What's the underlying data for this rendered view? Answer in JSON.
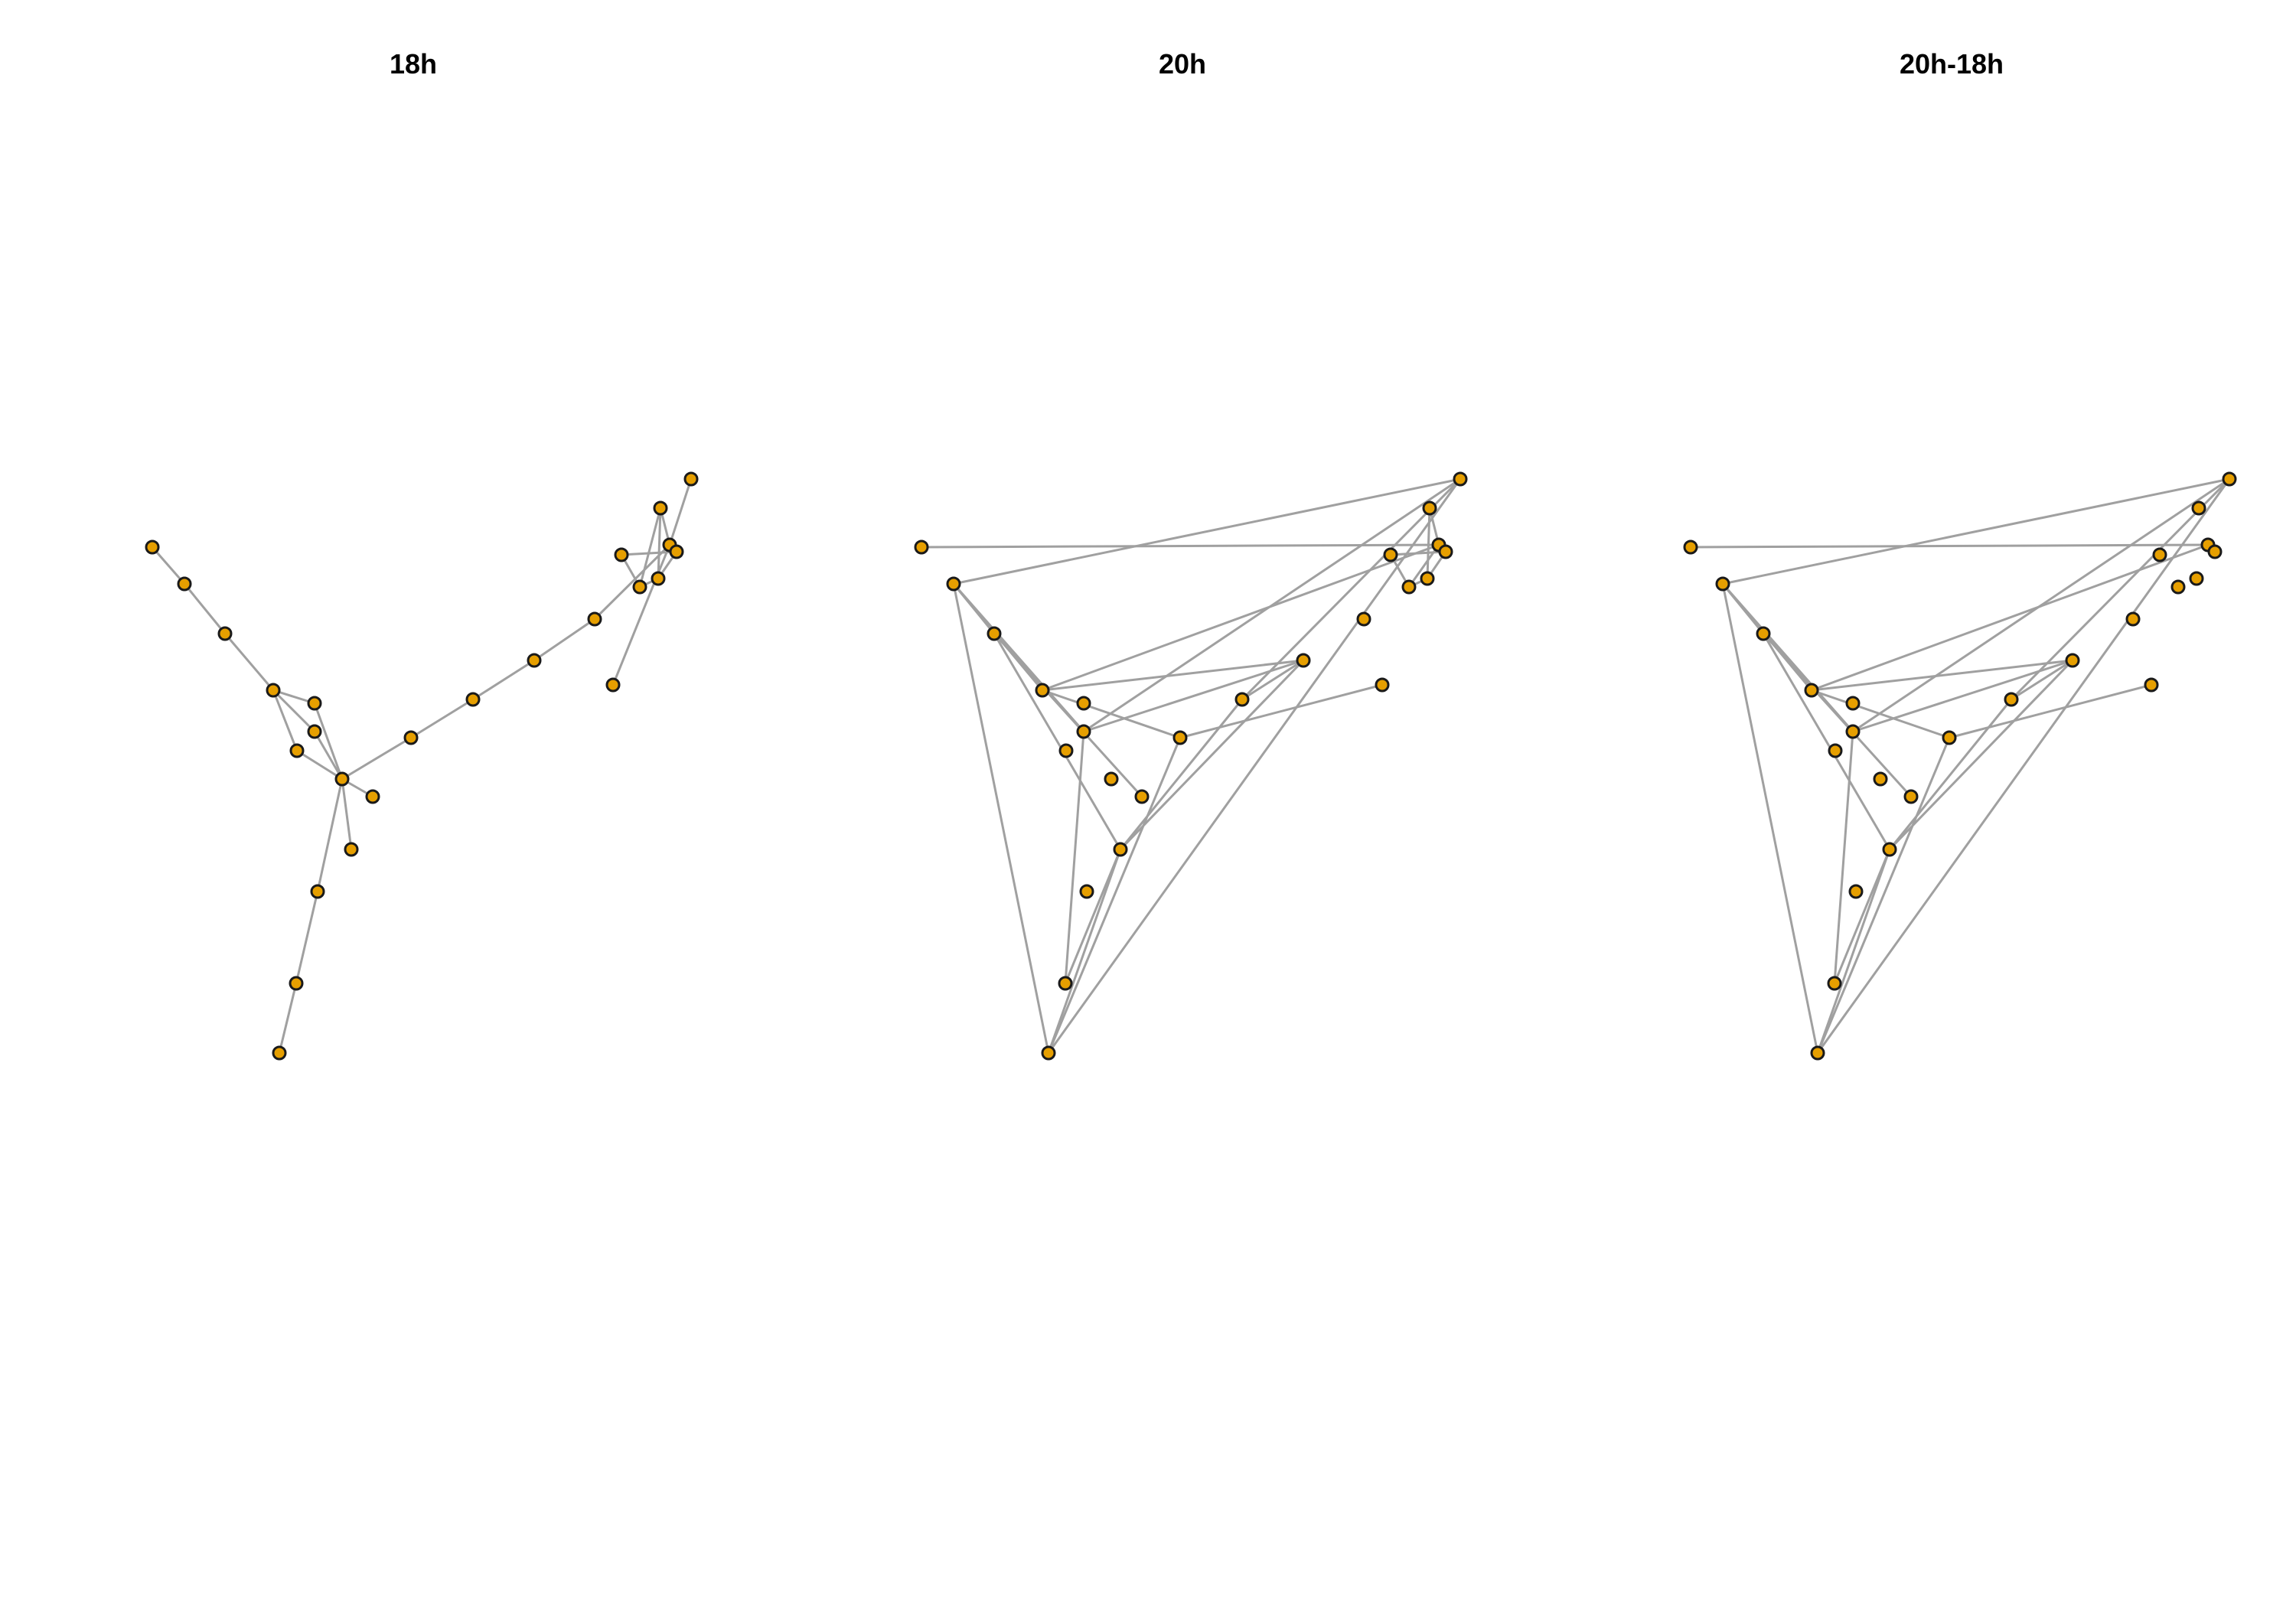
{
  "colors": {
    "edge": "#a0a0a0",
    "node_fill": "#e69f00",
    "node_stroke": "#1a1a1a",
    "background": "#ffffff"
  },
  "panels": [
    {
      "title": "18h",
      "edges": [
        [
          0,
          1
        ],
        [
          1,
          2
        ],
        [
          2,
          3
        ],
        [
          3,
          4
        ],
        [
          3,
          5
        ],
        [
          3,
          6
        ],
        [
          4,
          7
        ],
        [
          5,
          7
        ],
        [
          6,
          7
        ],
        [
          7,
          8
        ],
        [
          7,
          9
        ],
        [
          7,
          10
        ],
        [
          7,
          11
        ],
        [
          11,
          12
        ],
        [
          12,
          13
        ],
        [
          13,
          14
        ],
        [
          14,
          15
        ],
        [
          15,
          16
        ],
        [
          15,
          17
        ],
        [
          15,
          24
        ],
        [
          16,
          18
        ],
        [
          18,
          19
        ],
        [
          18,
          20
        ],
        [
          16,
          20
        ],
        [
          19,
          21
        ],
        [
          20,
          21
        ],
        [
          10,
          22
        ],
        [
          22,
          23
        ]
      ]
    },
    {
      "title": "20h",
      "edges": [
        [
          0,
          15
        ],
        [
          1,
          2
        ],
        [
          1,
          3
        ],
        [
          1,
          6
        ],
        [
          1,
          17
        ],
        [
          1,
          23
        ],
        [
          2,
          8
        ],
        [
          2,
          9
        ],
        [
          3,
          11
        ],
        [
          3,
          15
        ],
        [
          6,
          13
        ],
        [
          6,
          17
        ],
        [
          3,
          13
        ],
        [
          6,
          22
        ],
        [
          22,
          9
        ],
        [
          9,
          12
        ],
        [
          9,
          13
        ],
        [
          12,
          13
        ],
        [
          12,
          17
        ],
        [
          17,
          23
        ],
        [
          23,
          9
        ],
        [
          23,
          11
        ],
        [
          11,
          24
        ],
        [
          15,
          16
        ],
        [
          15,
          18
        ],
        [
          16,
          20
        ],
        [
          18,
          19
        ],
        [
          18,
          20
        ],
        [
          19,
          21
        ],
        [
          20,
          21
        ]
      ]
    },
    {
      "title": "20h-18h",
      "edges": [
        [
          0,
          15
        ],
        [
          1,
          2
        ],
        [
          1,
          3
        ],
        [
          1,
          6
        ],
        [
          1,
          17
        ],
        [
          1,
          23
        ],
        [
          2,
          8
        ],
        [
          2,
          9
        ],
        [
          3,
          11
        ],
        [
          3,
          15
        ],
        [
          6,
          13
        ],
        [
          6,
          17
        ],
        [
          3,
          13
        ],
        [
          6,
          22
        ],
        [
          22,
          9
        ],
        [
          9,
          12
        ],
        [
          9,
          13
        ],
        [
          12,
          13
        ],
        [
          12,
          17
        ],
        [
          17,
          23
        ],
        [
          23,
          9
        ],
        [
          23,
          11
        ],
        [
          11,
          24
        ]
      ]
    }
  ]
}
